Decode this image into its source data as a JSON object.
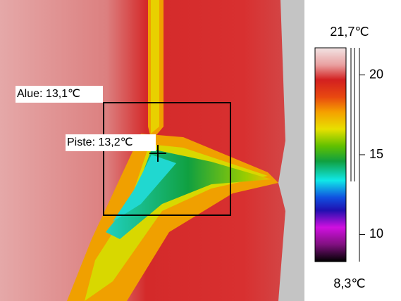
{
  "annotations": {
    "area": "Alue: 13,1℃",
    "spot": "Piste: 13,2℃"
  },
  "colorbar": {
    "range": [
      8.3,
      21.7
    ],
    "range_labels": [
      "8,3℃",
      "21,7℃"
    ],
    "ticks": [
      10,
      15,
      20
    ]
  }
}
